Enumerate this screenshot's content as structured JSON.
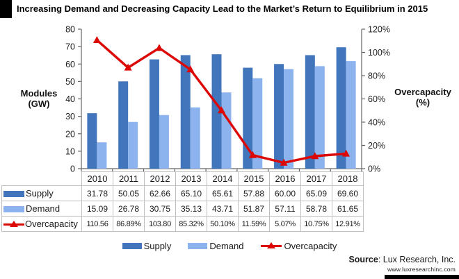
{
  "title": "Increasing Demand and Decreasing Capacity Lead to the Market’s Return to Equilibrium in 2015",
  "colors": {
    "supply": "#4276bc",
    "demand": "#8db3ee",
    "overcapacity": "#dc0806",
    "axis": "#666666",
    "tick_text": "#1f1f1f",
    "table_border": "#bfbfbf"
  },
  "chart_data": {
    "type": "bar+line combo",
    "categories": [
      "2010",
      "2011",
      "2012",
      "2013",
      "2014",
      "2015",
      "2016",
      "2017",
      "2018"
    ],
    "series": [
      {
        "name": "Supply",
        "type": "bar",
        "axis": "left",
        "values": [
          31.78,
          50.05,
          62.66,
          65.1,
          65.61,
          57.88,
          60.0,
          65.09,
          69.6
        ]
      },
      {
        "name": "Demand",
        "type": "bar",
        "axis": "left",
        "values": [
          15.09,
          26.78,
          30.75,
          35.13,
          43.71,
          51.87,
          57.11,
          58.78,
          61.65
        ]
      },
      {
        "name": "Overcapacity",
        "type": "line",
        "axis": "right",
        "marker": "triangle",
        "values": [
          110.56,
          86.89,
          103.8,
          85.32,
          50.1,
          11.59,
          5.07,
          10.75,
          12.91
        ]
      }
    ],
    "left_axis": {
      "label_line1": "Modules",
      "label_line2": "(GW)",
      "min": 0,
      "max": 80,
      "step": 10,
      "ticks": [
        "0",
        "10",
        "20",
        "30",
        "40",
        "50",
        "60",
        "70",
        "80"
      ]
    },
    "right_axis": {
      "label_line1": "Overcapacity",
      "label_line2": "(%)",
      "min": 0,
      "max": 120,
      "step": 20,
      "ticks": [
        "0%",
        "20%",
        "40%",
        "60%",
        "80%",
        "100%",
        "120%"
      ]
    },
    "grid": "off",
    "legend_position": "bottom"
  },
  "table": {
    "header": [
      "2010",
      "2011",
      "2012",
      "2013",
      "2014",
      "2015",
      "2016",
      "2017",
      "2018"
    ],
    "rows": [
      {
        "label": "Supply",
        "swatch": "supply",
        "values": [
          "31.78",
          "50.05",
          "62.66",
          "65.10",
          "65.61",
          "57.88",
          "60.00",
          "65.09",
          "69.60"
        ]
      },
      {
        "label": "Demand",
        "swatch": "demand",
        "values": [
          "15.09",
          "26.78",
          "30.75",
          "35.13",
          "43.71",
          "51.87",
          "57.11",
          "58.78",
          "61.65"
        ]
      },
      {
        "label": "Overcapacity",
        "swatch": "line",
        "values": [
          "110.56",
          "86.89%",
          "103.80",
          "85.32%",
          "50.10%",
          "11.59%",
          "5.07%",
          "10.75%",
          "12.91%"
        ]
      }
    ]
  },
  "legend": [
    {
      "label": "Supply",
      "swatch": "supply"
    },
    {
      "label": "Demand",
      "swatch": "demand"
    },
    {
      "label": "Overcapacity",
      "swatch": "line"
    }
  ],
  "source": {
    "prefix": "Source",
    "rest": ": Lux Research, Inc.",
    "url": "www.luxresearchinc.com"
  }
}
